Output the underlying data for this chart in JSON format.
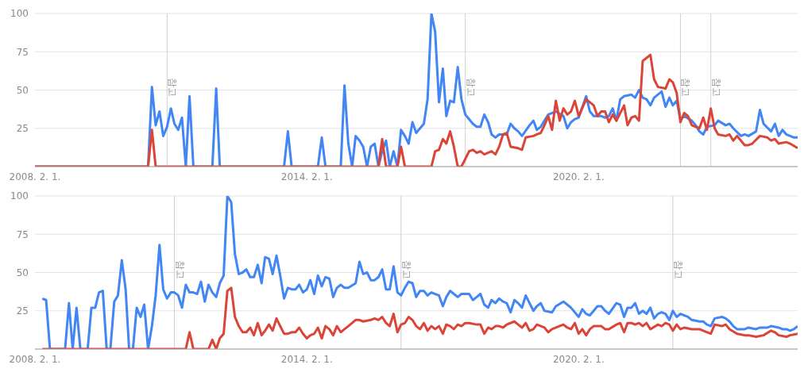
{
  "chart_data": [
    {
      "type": "line",
      "xlim": [
        "2008-02",
        "2024-12"
      ],
      "xticks": [
        {
          "value": "2008-02-01",
          "label": "2008. 2. 1."
        },
        {
          "value": "2014-02-01",
          "label": "2014. 2. 1."
        },
        {
          "value": "2020-02-01",
          "label": "2020. 2. 1."
        }
      ],
      "ylim": [
        0,
        100
      ],
      "yticks": [
        {
          "value": 0,
          "label": null
        },
        25,
        50,
        75,
        100
      ],
      "grid": "y",
      "ref_lines": [
        {
          "axis": "x",
          "value": "2011-01",
          "label": "참고"
        },
        {
          "axis": "x",
          "value": "2017-08",
          "label": "참고"
        },
        {
          "axis": "x",
          "value": "2022-05",
          "label": "참고"
        },
        {
          "axis": "x",
          "value": "2023-01",
          "label": "참고"
        }
      ],
      "series": [
        {
          "color": "#4285f4",
          "x": [
            "2008-02",
            "2010-08",
            "2010-09",
            "2010-10",
            "2010-11",
            "2010-12",
            "2011-01",
            "2011-02",
            "2011-03",
            "2011-04",
            "2011-05",
            "2011-06",
            "2011-07",
            "2011-08",
            "2012-01",
            "2012-02",
            "2012-03",
            "2013-08",
            "2013-09",
            "2013-10",
            "2014-05",
            "2014-06",
            "2014-07",
            "2014-11",
            "2014-12",
            "2015-01",
            "2015-02",
            "2015-03",
            "2015-04",
            "2015-05",
            "2015-06",
            "2015-07",
            "2015-08",
            "2015-09",
            "2015-10",
            "2015-11",
            "2015-12",
            "2016-01",
            "2016-02",
            "2016-03",
            "2016-04",
            "2016-05",
            "2016-06",
            "2016-07",
            "2016-08",
            "2016-09",
            "2016-10",
            "2016-11",
            "2016-12",
            "2017-01",
            "2017-02",
            "2017-03",
            "2017-04",
            "2017-05",
            "2017-06",
            "2017-07",
            "2017-08",
            "2017-09",
            "2017-10",
            "2017-11",
            "2017-12",
            "2018-01",
            "2018-02",
            "2018-03",
            "2018-04",
            "2018-05",
            "2018-06",
            "2018-07",
            "2018-08",
            "2018-09",
            "2018-10",
            "2018-11",
            "2019-01",
            "2019-02",
            "2019-03",
            "2019-04",
            "2019-05",
            "2019-06",
            "2019-08",
            "2019-10",
            "2019-11",
            "2019-12",
            "2020-01",
            "2020-02",
            "2020-04",
            "2020-05",
            "2020-06",
            "2020-08",
            "2020-09",
            "2020-10",
            "2020-11",
            "2020-12",
            "2021-01",
            "2021-02",
            "2021-04",
            "2021-05",
            "2021-06",
            "2021-07",
            "2021-08",
            "2021-09",
            "2021-10",
            "2021-12",
            "2022-01",
            "2022-02",
            "2022-03",
            "2022-04",
            "2022-05",
            "2022-06",
            "2022-08",
            "2022-09",
            "2022-10",
            "2022-11",
            "2022-12",
            "2023-02",
            "2023-03",
            "2023-05",
            "2023-06",
            "2023-07",
            "2023-09",
            "2023-10",
            "2023-11",
            "2024-01",
            "2024-02",
            "2024-03",
            "2024-05",
            "2024-06",
            "2024-07",
            "2024-08",
            "2024-09",
            "2024-11",
            "2024-12"
          ],
          "values": [
            0,
            0,
            52,
            27,
            36,
            20,
            26,
            38,
            28,
            24,
            32,
            0,
            46,
            0,
            0,
            51,
            0,
            0,
            23,
            0,
            0,
            19,
            0,
            0,
            53,
            15,
            0,
            20,
            17,
            13,
            0,
            13,
            15,
            0,
            10,
            17,
            0,
            10,
            0,
            24,
            20,
            15,
            29,
            22,
            25,
            28,
            44,
            100,
            88,
            42,
            64,
            33,
            43,
            42,
            65,
            44,
            34,
            31,
            28,
            26,
            26,
            34,
            29,
            21,
            19,
            21,
            21,
            21,
            28,
            25,
            23,
            20,
            27,
            30,
            24,
            26,
            30,
            34,
            36,
            33,
            25,
            29,
            31,
            32,
            46,
            36,
            33,
            33,
            32,
            33,
            38,
            30,
            44,
            46,
            47,
            45,
            50,
            45,
            44,
            40,
            45,
            49,
            39,
            45,
            40,
            43,
            31,
            33,
            30,
            27,
            23,
            21,
            26,
            27,
            30,
            27,
            28,
            25,
            20,
            21,
            20,
            23,
            37,
            28,
            23,
            28,
            20,
            24,
            21,
            19,
            19
          ]
        },
        {
          "color": "#db4437",
          "x": [
            "2008-02",
            "2010-08",
            "2010-09",
            "2010-10",
            "2015-09",
            "2015-10",
            "2015-11",
            "2016-02",
            "2016-03",
            "2016-04",
            "2016-11",
            "2016-12",
            "2017-01",
            "2017-02",
            "2017-03",
            "2017-04",
            "2017-05",
            "2017-06",
            "2017-07",
            "2017-09",
            "2017-10",
            "2017-11",
            "2017-12",
            "2018-01",
            "2018-03",
            "2018-04",
            "2018-05",
            "2018-06",
            "2018-07",
            "2018-08",
            "2018-10",
            "2018-11",
            "2018-12",
            "2019-02",
            "2019-03",
            "2019-04",
            "2019-05",
            "2019-06",
            "2019-07",
            "2019-08",
            "2019-09",
            "2019-10",
            "2019-11",
            "2019-12",
            "2020-01",
            "2020-02",
            "2020-04",
            "2020-05",
            "2020-06",
            "2020-07",
            "2020-08",
            "2020-09",
            "2020-10",
            "2020-11",
            "2020-12",
            "2021-02",
            "2021-03",
            "2021-04",
            "2021-05",
            "2021-06",
            "2021-07",
            "2021-08",
            "2021-09",
            "2021-10",
            "2021-11",
            "2022-01",
            "2022-02",
            "2022-03",
            "2022-04",
            "2022-05",
            "2022-06",
            "2022-07",
            "2022-08",
            "2022-10",
            "2022-11",
            "2022-12",
            "2023-01",
            "2023-02",
            "2023-03",
            "2023-05",
            "2023-06",
            "2023-07",
            "2023-08",
            "2023-10",
            "2023-11",
            "2023-12",
            "2024-02",
            "2024-04",
            "2024-05",
            "2024-06",
            "2024-07",
            "2024-09",
            "2024-10",
            "2024-12"
          ],
          "values": [
            0,
            0,
            24,
            0,
            0,
            18,
            0,
            0,
            13,
            0,
            0,
            10,
            11,
            18,
            15,
            23,
            13,
            0,
            0,
            10,
            11,
            9,
            10,
            8,
            10,
            8,
            13,
            21,
            22,
            13,
            12,
            11,
            19,
            20,
            21,
            22,
            27,
            33,
            24,
            43,
            30,
            38,
            34,
            36,
            43,
            33,
            44,
            42,
            40,
            33,
            36,
            36,
            29,
            34,
            30,
            40,
            27,
            32,
            33,
            30,
            69,
            71,
            73,
            57,
            52,
            51,
            57,
            55,
            48,
            29,
            35,
            33,
            27,
            25,
            32,
            24,
            38,
            25,
            21,
            20,
            21,
            17,
            20,
            14,
            14,
            15,
            20,
            19,
            17,
            18,
            15,
            16,
            15,
            12
          ]
        }
      ]
    },
    {
      "type": "line",
      "xlim": [
        "2008-02",
        "2024-12"
      ],
      "xticks": [
        {
          "value": "2008-02-01",
          "label": "2008. 2. 1."
        },
        {
          "value": "2014-02-01",
          "label": "2014. 2. 1."
        },
        {
          "value": "2020-02-01",
          "label": "2020. 2. 1."
        }
      ],
      "ylim": [
        0,
        100
      ],
      "yticks": [
        {
          "value": 0,
          "label": null
        },
        25,
        50,
        75,
        100
      ],
      "grid": "y",
      "ref_lines": [
        {
          "axis": "x",
          "value": "2011-03",
          "label": "참고"
        },
        {
          "axis": "x",
          "value": "2016-03",
          "label": "참고"
        },
        {
          "axis": "x",
          "value": "2022-03",
          "label": "참고"
        }
      ],
      "series": [
        {
          "color": "#4285f4",
          "x": [
            "2008-04",
            "2008-05",
            "2008-06",
            "2008-10",
            "2008-11",
            "2008-12",
            "2009-01",
            "2009-02",
            "2009-04",
            "2009-05",
            "2009-06",
            "2009-07",
            "2009-08",
            "2009-09",
            "2009-10",
            "2009-11",
            "2009-12",
            "2010-01",
            "2010-02",
            "2010-03",
            "2010-04",
            "2010-05",
            "2010-06",
            "2010-07",
            "2010-08",
            "2010-09",
            "2010-10",
            "2010-11",
            "2010-12",
            "2011-01",
            "2011-02",
            "2011-03",
            "2011-04",
            "2011-05",
            "2011-06",
            "2011-07",
            "2011-08",
            "2011-09",
            "2011-10",
            "2011-11",
            "2011-12",
            "2012-01",
            "2012-02",
            "2012-03",
            "2012-04",
            "2012-05",
            "2012-06",
            "2012-07",
            "2012-08",
            "2012-09",
            "2012-10",
            "2012-11",
            "2012-12",
            "2013-01",
            "2013-02",
            "2013-03",
            "2013-04",
            "2013-05",
            "2013-06",
            "2013-07",
            "2013-08",
            "2013-09",
            "2013-10",
            "2013-11",
            "2013-12",
            "2014-01",
            "2014-02",
            "2014-03",
            "2014-04",
            "2014-05",
            "2014-06",
            "2014-07",
            "2014-08",
            "2014-09",
            "2014-10",
            "2014-11",
            "2014-12",
            "2015-01",
            "2015-03",
            "2015-04",
            "2015-05",
            "2015-06",
            "2015-07",
            "2015-08",
            "2015-09",
            "2015-10",
            "2015-11",
            "2015-12",
            "2016-01",
            "2016-02",
            "2016-03",
            "2016-04",
            "2016-05",
            "2016-06",
            "2016-07",
            "2016-08",
            "2016-09",
            "2016-10",
            "2016-11",
            "2016-12",
            "2017-01",
            "2017-02",
            "2017-03",
            "2017-04",
            "2017-05",
            "2017-06",
            "2017-07",
            "2017-09",
            "2017-10",
            "2017-11",
            "2017-12",
            "2018-01",
            "2018-02",
            "2018-03",
            "2018-04",
            "2018-05",
            "2018-06",
            "2018-07",
            "2018-08",
            "2018-09",
            "2018-10",
            "2018-11",
            "2018-12",
            "2019-01",
            "2019-02",
            "2019-03",
            "2019-04",
            "2019-05",
            "2019-07",
            "2019-08",
            "2019-10",
            "2019-11",
            "2019-12",
            "2020-02",
            "2020-03",
            "2020-04",
            "2020-05",
            "2020-06",
            "2020-07",
            "2020-08",
            "2020-09",
            "2020-10",
            "2020-12",
            "2021-01",
            "2021-02",
            "2021-03",
            "2021-04",
            "2021-05",
            "2021-06",
            "2021-07",
            "2021-08",
            "2021-09",
            "2021-10",
            "2021-11",
            "2021-12",
            "2022-01",
            "2022-02",
            "2022-03",
            "2022-04",
            "2022-05",
            "2022-07",
            "2022-08",
            "2022-10",
            "2022-11",
            "2022-12",
            "2023-01",
            "2023-02",
            "2023-04",
            "2023-05",
            "2023-06",
            "2023-07",
            "2023-08",
            "2023-10",
            "2023-11",
            "2024-01",
            "2024-02",
            "2024-04",
            "2024-05",
            "2024-07",
            "2024-08",
            "2024-09",
            "2024-10",
            "2024-11",
            "2024-12"
          ],
          "values": [
            33,
            32,
            0,
            0,
            30,
            0,
            27,
            0,
            0,
            27,
            27,
            37,
            38,
            0,
            0,
            31,
            35,
            58,
            39,
            0,
            0,
            27,
            21,
            29,
            0,
            15,
            35,
            68,
            39,
            33,
            37,
            37,
            35,
            27,
            42,
            37,
            37,
            36,
            44,
            31,
            42,
            37,
            34,
            43,
            48,
            100,
            96,
            62,
            49,
            50,
            52,
            47,
            47,
            55,
            43,
            60,
            59,
            49,
            61,
            48,
            33,
            40,
            39,
            39,
            42,
            37,
            39,
            45,
            36,
            48,
            41,
            47,
            46,
            34,
            40,
            42,
            40,
            40,
            43,
            57,
            49,
            50,
            45,
            45,
            47,
            52,
            39,
            39,
            54,
            37,
            35,
            40,
            44,
            43,
            34,
            38,
            38,
            35,
            37,
            36,
            35,
            28,
            34,
            38,
            36,
            34,
            36,
            36,
            32,
            34,
            36,
            29,
            27,
            32,
            30,
            33,
            31,
            30,
            24,
            32,
            30,
            27,
            35,
            30,
            25,
            28,
            30,
            25,
            24,
            28,
            31,
            29,
            27,
            21,
            26,
            23,
            22,
            25,
            28,
            28,
            25,
            23,
            30,
            29,
            21,
            27,
            27,
            30,
            23,
            25,
            23,
            27,
            20,
            23,
            24,
            23,
            19,
            25,
            21,
            23,
            21,
            19,
            18,
            18,
            16,
            15,
            20,
            21,
            20,
            18,
            15,
            13,
            13,
            14,
            13,
            14,
            14,
            15,
            14,
            13,
            13,
            12,
            13,
            15
          ]
        },
        {
          "color": "#db4437",
          "x": [
            "2008-04",
            "2011-06",
            "2011-07",
            "2011-08",
            "2011-12",
            "2012-01",
            "2012-02",
            "2012-03",
            "2012-04",
            "2012-05",
            "2012-06",
            "2012-07",
            "2012-08",
            "2012-09",
            "2012-10",
            "2012-11",
            "2012-12",
            "2013-01",
            "2013-02",
            "2013-03",
            "2013-04",
            "2013-05",
            "2013-06",
            "2013-07",
            "2013-08",
            "2013-09",
            "2013-10",
            "2013-11",
            "2013-12",
            "2014-01",
            "2014-02",
            "2014-03",
            "2014-04",
            "2014-05",
            "2014-06",
            "2014-07",
            "2014-08",
            "2014-09",
            "2014-10",
            "2014-11",
            "2014-12",
            "2015-01",
            "2015-03",
            "2015-04",
            "2015-05",
            "2015-07",
            "2015-08",
            "2015-09",
            "2015-10",
            "2015-11",
            "2015-12",
            "2016-01",
            "2016-02",
            "2016-03",
            "2016-04",
            "2016-05",
            "2016-06",
            "2016-07",
            "2016-08",
            "2016-09",
            "2016-10",
            "2016-11",
            "2016-12",
            "2017-01",
            "2017-02",
            "2017-03",
            "2017-04",
            "2017-05",
            "2017-06",
            "2017-07",
            "2017-08",
            "2017-09",
            "2017-11",
            "2017-12",
            "2018-01",
            "2018-02",
            "2018-03",
            "2018-04",
            "2018-05",
            "2018-06",
            "2018-07",
            "2018-09",
            "2018-10",
            "2018-11",
            "2018-12",
            "2019-01",
            "2019-02",
            "2019-03",
            "2019-05",
            "2019-06",
            "2019-07",
            "2019-08",
            "2019-10",
            "2019-11",
            "2019-12",
            "2020-01",
            "2020-02",
            "2020-03",
            "2020-04",
            "2020-05",
            "2020-06",
            "2020-08",
            "2020-09",
            "2020-10",
            "2020-12",
            "2021-01",
            "2021-02",
            "2021-03",
            "2021-04",
            "2021-05",
            "2021-06",
            "2021-07",
            "2021-08",
            "2021-09",
            "2021-11",
            "2021-12",
            "2022-01",
            "2022-02",
            "2022-03",
            "2022-04",
            "2022-05",
            "2022-06",
            "2022-08",
            "2022-10",
            "2022-11",
            "2023-01",
            "2023-02",
            "2023-04",
            "2023-05",
            "2023-06",
            "2023-08",
            "2023-10",
            "2023-11",
            "2024-01",
            "2024-03",
            "2024-05",
            "2024-06",
            "2024-07",
            "2024-09",
            "2024-10",
            "2024-12"
          ],
          "values": [
            0,
            0,
            11,
            0,
            0,
            6,
            0,
            7,
            10,
            38,
            40,
            21,
            15,
            11,
            11,
            14,
            9,
            17,
            9,
            12,
            16,
            12,
            20,
            15,
            10,
            10,
            11,
            11,
            14,
            10,
            7,
            9,
            10,
            14,
            7,
            15,
            13,
            9,
            15,
            11,
            13,
            15,
            19,
            19,
            18,
            19,
            20,
            19,
            21,
            17,
            15,
            23,
            11,
            16,
            17,
            21,
            19,
            15,
            13,
            17,
            12,
            15,
            13,
            15,
            10,
            16,
            15,
            13,
            16,
            15,
            17,
            17,
            16,
            16,
            10,
            14,
            13,
            15,
            15,
            14,
            16,
            18,
            16,
            14,
            17,
            12,
            13,
            16,
            14,
            11,
            13,
            14,
            16,
            14,
            13,
            17,
            10,
            13,
            9,
            13,
            15,
            15,
            13,
            13,
            16,
            17,
            11,
            17,
            17,
            16,
            17,
            15,
            17,
            13,
            16,
            15,
            17,
            16,
            12,
            16,
            13,
            14,
            13,
            13,
            12,
            10,
            16,
            15,
            16,
            13,
            10,
            9,
            9,
            8,
            9,
            12,
            11,
            9,
            8,
            9,
            10
          ]
        }
      ]
    }
  ]
}
